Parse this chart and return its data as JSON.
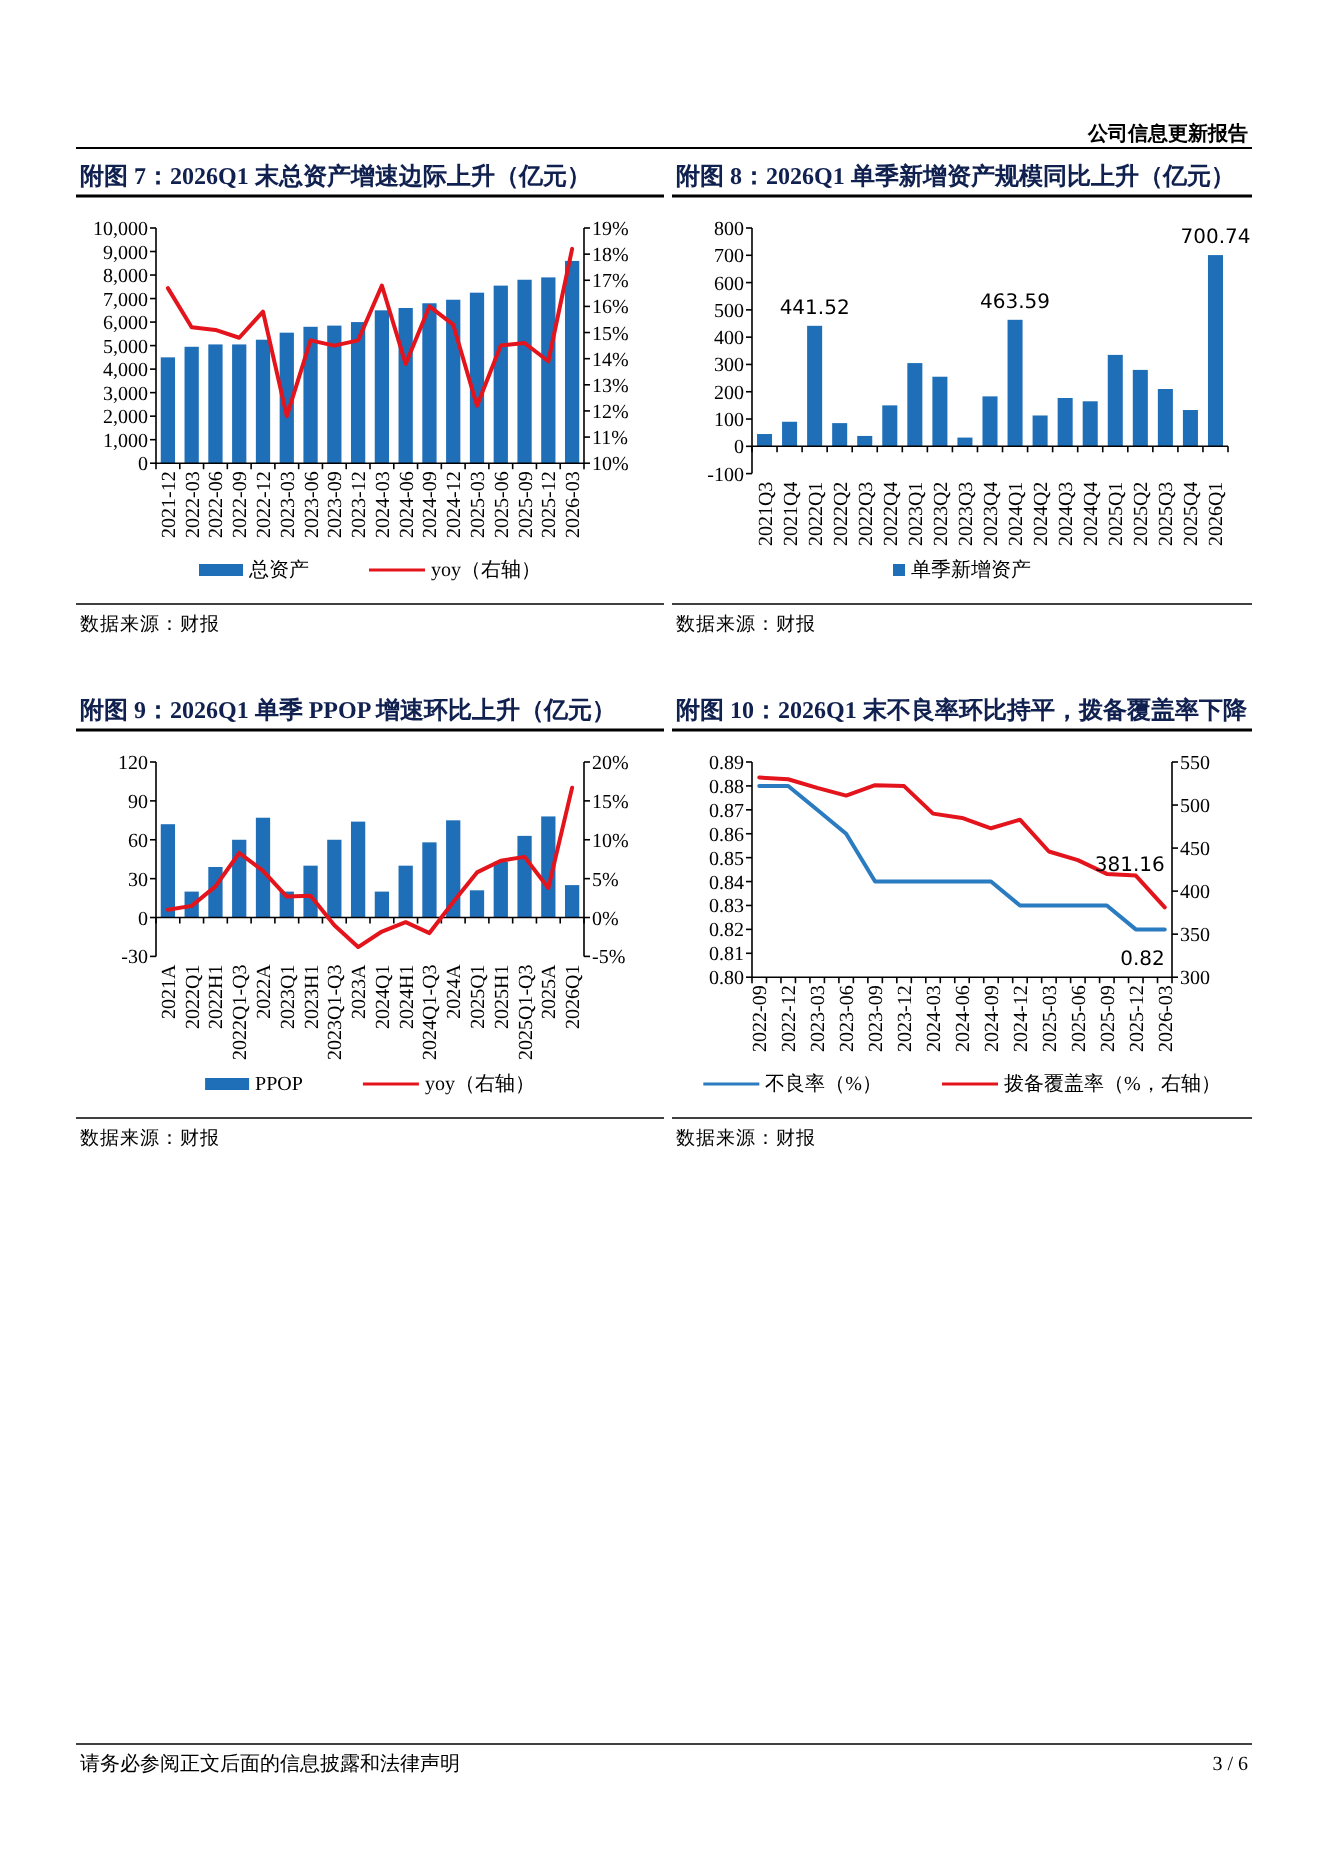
{
  "chart_data": [
    {
      "type": "bar",
      "title": "附图 7：2026Q1 末总资产增速边际上升（亿元）",
      "categories": [
        "2021-12",
        "2022-03",
        "2022-06",
        "2022-09",
        "2022-12",
        "2023-03",
        "2023-06",
        "2023-09",
        "2023-12",
        "2024-03",
        "2024-06",
        "2024-09",
        "2024-12",
        "2025-03",
        "2025-06",
        "2025-09",
        "2025-12",
        "2026-03"
      ],
      "series": [
        {
          "name": "总资产",
          "type": "bar",
          "color": "#1f6fb8",
          "values": [
            4500,
            4950,
            5050,
            5050,
            5250,
            5550,
            5800,
            5850,
            6000,
            6500,
            6600,
            6800,
            6950,
            7250,
            7550,
            7800,
            7900,
            8600
          ]
        },
        {
          "name": "yoy（右轴）",
          "type": "line",
          "axis": "y2",
          "color": "#e3141c",
          "values": [
            16.7,
            15.2,
            15.1,
            14.8,
            15.8,
            11.8,
            14.7,
            14.5,
            14.7,
            16.8,
            13.8,
            16.0,
            15.3,
            12.2,
            14.5,
            14.6,
            13.9,
            18.2
          ]
        }
      ],
      "ylim": [
        0,
        10000
      ],
      "yticks": [
        0,
        {
          "value": 1000,
          "label": "1,000"
        },
        {
          "value": 2000,
          "label": "2,000"
        },
        {
          "value": 3000,
          "label": "3,000"
        },
        {
          "value": 4000,
          "label": "4,000"
        },
        {
          "value": 5000,
          "label": "5,000"
        },
        {
          "value": 6000,
          "label": "6,000"
        },
        {
          "value": 7000,
          "label": "7,000"
        },
        {
          "value": 8000,
          "label": "8,000"
        },
        {
          "value": 9000,
          "label": "9,000"
        },
        {
          "value": 10000,
          "label": "10,000"
        }
      ],
      "y2lim": [
        10,
        19
      ],
      "y2ticks": [
        {
          "value": 10,
          "label": "10%"
        },
        {
          "value": 11,
          "label": "11%"
        },
        {
          "value": 12,
          "label": "12%"
        },
        {
          "value": 13,
          "label": "13%"
        },
        {
          "value": 14,
          "label": "14%"
        },
        {
          "value": 15,
          "label": "15%"
        },
        {
          "value": 16,
          "label": "16%"
        },
        {
          "value": 17,
          "label": "17%"
        },
        {
          "value": 18,
          "label": "18%"
        },
        {
          "value": 19,
          "label": "19%"
        }
      ],
      "legend": "bottom",
      "annotations": [
        "数据来源：财报",
        "公司信息更新报告"
      ]
    },
    {
      "type": "bar",
      "title": "附图 8：2026Q1 单季新增资产规模同比上升（亿元）",
      "categories": [
        "2021Q3",
        "2021Q4",
        "2022Q1",
        "2022Q2",
        "2022Q3",
        "2022Q4",
        "2023Q1",
        "2023Q2",
        "2023Q3",
        "2023Q4",
        "2024Q1",
        "2024Q2",
        "2024Q3",
        "2024Q4",
        "2025Q1",
        "2025Q2",
        "2025Q3",
        "2025Q4",
        "2026Q1"
      ],
      "series": [
        {
          "name": "单季新增资产",
          "color": "#1f6fb8",
          "values": [
            45,
            90,
            441.52,
            85,
            38,
            150,
            305,
            255,
            32,
            183,
            463.59,
            113,
            177,
            165,
            335,
            280,
            210,
            133,
            700.74
          ]
        }
      ],
      "value_labels": [
        null,
        null,
        "441.52",
        null,
        null,
        null,
        null,
        null,
        null,
        null,
        "463.59",
        null,
        null,
        null,
        null,
        null,
        null,
        null,
        "700.74"
      ],
      "ylim": [
        -100,
        800
      ],
      "yticks": [
        -100,
        0,
        100,
        200,
        300,
        400,
        500,
        600,
        700,
        800
      ],
      "legend": "bottom",
      "annotations": [
        "数据来源：财报"
      ]
    },
    {
      "type": "bar",
      "title": "附图 9：2026Q1 单季 PPOP 增速环比上升（亿元）",
      "categories": [
        "2021A",
        "2022Q1",
        "2022H1",
        "2022Q1-Q3",
        "2022A",
        "2023Q1",
        "2023H1",
        "2023Q1-Q3",
        "2023A",
        "2024Q1",
        "2024H1",
        "2024Q1-Q3",
        "2024A",
        "2025Q1",
        "2025H1",
        "2025Q1-Q3",
        "2025A",
        "2026Q1"
      ],
      "series": [
        {
          "name": "PPOP",
          "type": "bar",
          "color": "#1f6fb8",
          "values": [
            72,
            20,
            39,
            60,
            77,
            20,
            40,
            60,
            74,
            20,
            40,
            58,
            75,
            21,
            43,
            63,
            78,
            25
          ]
        },
        {
          "name": "yoy（右轴）",
          "type": "line",
          "axis": "y2",
          "color": "#e3141c",
          "values": [
            1.0,
            1.5,
            4.0,
            8.3,
            6.0,
            2.7,
            2.8,
            -1.0,
            -3.8,
            -1.8,
            -0.6,
            -2.0,
            2.0,
            5.8,
            7.3,
            7.8,
            3.8,
            16.7
          ]
        }
      ],
      "ylim": [
        -30,
        120
      ],
      "yticks": [
        -30,
        0,
        30,
        60,
        90,
        120
      ],
      "y2lim": [
        -5,
        20
      ],
      "y2ticks": [
        {
          "value": -5,
          "label": "-5%"
        },
        {
          "value": 0,
          "label": "0%"
        },
        {
          "value": 5,
          "label": "5%"
        },
        {
          "value": 10,
          "label": "10%"
        },
        {
          "value": 15,
          "label": "15%"
        },
        {
          "value": 20,
          "label": "20%"
        }
      ],
      "legend": "bottom",
      "annotations": [
        "数据来源：财报"
      ]
    },
    {
      "type": "line",
      "title": "附图 10：2026Q1 末不良率环比持平，拨备覆盖率下降",
      "categories": [
        "2022-09",
        null,
        "2022-12",
        null,
        "2023-03",
        null,
        "2023-06",
        null,
        "2023-09",
        null,
        "2023-12",
        null,
        "2024-03",
        null,
        "2024-06",
        null,
        "2024-09",
        null,
        "2024-12",
        null,
        "2025-03",
        null,
        "2025-06",
        null,
        "2025-09",
        null,
        "2025-12",
        null,
        "2026-03"
      ],
      "series": [
        {
          "name": "不良率（%）",
          "color": "#2a7bc0",
          "values": [
            0.88,
            null,
            0.88,
            null,
            0.87,
            null,
            0.86,
            null,
            0.84,
            null,
            0.84,
            null,
            0.84,
            null,
            0.84,
            null,
            0.84,
            null,
            0.83,
            null,
            0.83,
            null,
            0.83,
            null,
            0.83,
            null,
            0.82,
            null,
            0.82
          ],
          "value_labels": [
            null,
            null,
            null,
            null,
            null,
            null,
            null,
            null,
            null,
            null,
            null,
            null,
            null,
            null,
            null,
            null,
            null,
            null,
            null,
            null,
            null,
            null,
            null,
            null,
            null,
            null,
            null,
            null,
            "0.82"
          ]
        },
        {
          "name": "拨备覆盖率（%，右轴）",
          "axis": "y2",
          "color": "#e3141c",
          "values": [
            532,
            null,
            530,
            null,
            520,
            null,
            511,
            null,
            523,
            null,
            522,
            null,
            490,
            null,
            485,
            null,
            473,
            null,
            483,
            null,
            446,
            null,
            436,
            null,
            420,
            null,
            418,
            null,
            381.16
          ],
          "value_labels": [
            null,
            null,
            null,
            null,
            null,
            null,
            null,
            null,
            null,
            null,
            null,
            null,
            null,
            null,
            null,
            null,
            null,
            null,
            null,
            null,
            null,
            null,
            null,
            null,
            null,
            null,
            null,
            null,
            "381.16"
          ]
        }
      ],
      "ylim": [
        0.8,
        0.89
      ],
      "yticks": [
        {
          "value": 0.8,
          "label": "0.80"
        },
        0.81,
        0.82,
        0.83,
        0.84,
        0.85,
        0.86,
        0.87,
        0.88,
        0.89
      ],
      "y2lim": [
        300,
        550
      ],
      "y2ticks": [
        300,
        350,
        400,
        450,
        500,
        550
      ],
      "legend": "bottom",
      "annotations": [
        "数据来源：财报",
        "请务必参阅正文后面的信息披露和法律声明",
        "3 / 6"
      ]
    }
  ]
}
